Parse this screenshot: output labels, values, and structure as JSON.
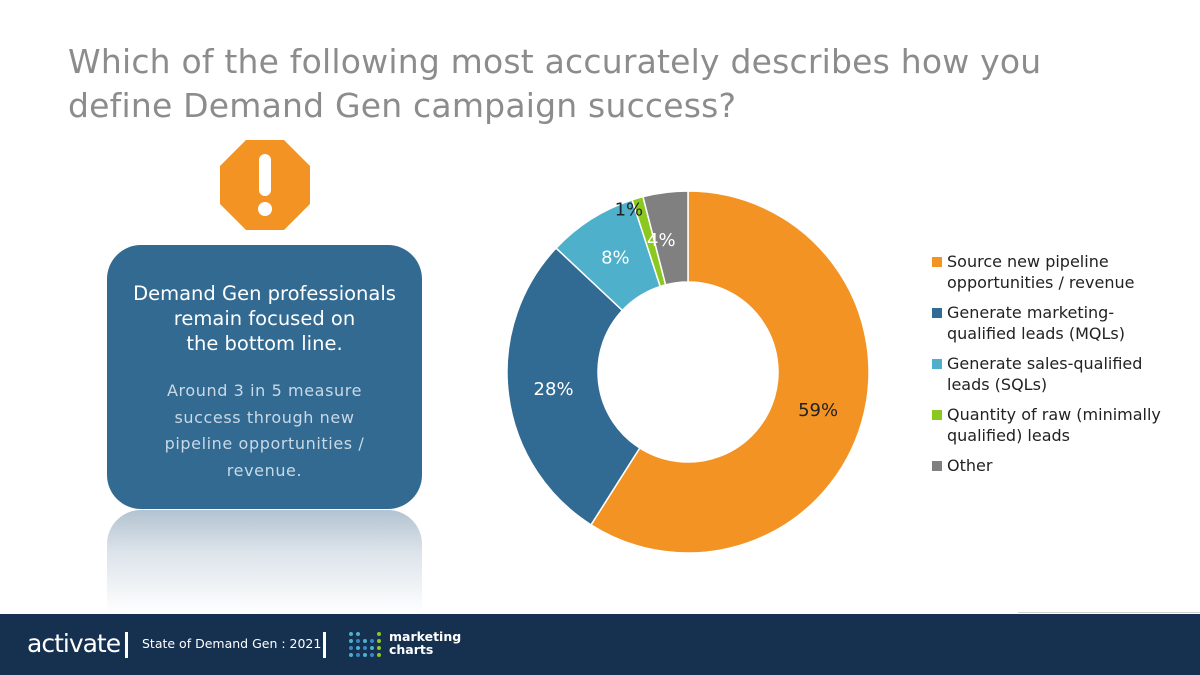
{
  "title": "Which of the following most accurately describes how you define Demand Gen campaign success?",
  "callout": {
    "heading_lines": [
      "Demand Gen professionals",
      "remain focused on",
      "the bottom line."
    ],
    "body": "Around 3 in 5 measure success through new pipeline opportunities / revenue."
  },
  "chart_data": {
    "type": "pie",
    "style": "donut",
    "title": "",
    "categories": [
      "Source new pipeline opportunities / revenue",
      "Generate marketing-qualified leads (MQLs)",
      "Generate sales-qualified leads (SQLs)",
      "Quantity of raw (minimally qualified) leads",
      "Other"
    ],
    "values": [
      59,
      28,
      8,
      1,
      4
    ],
    "labels": [
      "59%",
      "28%",
      "8%",
      "1%",
      "4%"
    ],
    "colors": [
      "#f39323",
      "#316a92",
      "#4eb0cb",
      "#8cc920",
      "#808080"
    ],
    "legend": [
      "Source new pipeline opportunities / revenue",
      "Generate marketing-qualified leads (MQLs)",
      "Generate sales-qualified leads (SQLs)",
      "Quantity of raw (minimally qualified) leads",
      "Other"
    ],
    "legend_position": "right"
  },
  "footer": {
    "brand": "activate",
    "report": "State of Demand Gen : 2021",
    "partner_line1": "marketing",
    "partner_line2": "charts"
  },
  "icons": {
    "alert": "exclamation-stop-icon",
    "partner_logo": "dots-grid-icon"
  }
}
